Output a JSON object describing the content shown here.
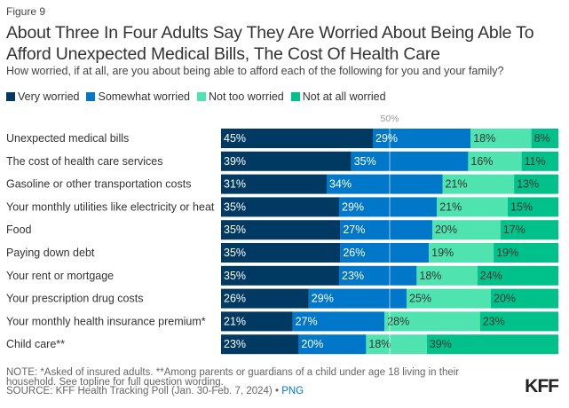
{
  "figure_label": "Figure 9",
  "chart_data": {
    "type": "bar",
    "orientation": "horizontal-stacked",
    "title": "About Three In Four Adults Say They Are Worried About Being Able To Afford Unexpected Medical Bills, The Cost Of Health Care",
    "subtitle": "How worried, if at all, are you about being able to afford each of the following for you and your family?",
    "reference_line": {
      "value": 50,
      "label": "50%"
    },
    "categories": [
      "Unexpected medical bills",
      "The cost of health care services",
      "Gasoline or other transportation costs",
      "Your monthly utilities like electricity or heat",
      "Food",
      "Paying down debt",
      "Your rent or mortgage",
      "Your prescription drug costs",
      "Your monthly health insurance premium*",
      "Child care**"
    ],
    "series": [
      {
        "name": "Very worried",
        "color": "#003a63",
        "label_color": "#ffffff",
        "values": [
          45,
          39,
          31,
          35,
          35,
          35,
          35,
          26,
          21,
          23
        ]
      },
      {
        "name": "Somewhat worried",
        "color": "#0077c8",
        "label_color": "#ffffff",
        "values": [
          29,
          35,
          34,
          29,
          27,
          26,
          23,
          29,
          27,
          20
        ]
      },
      {
        "name": "Not too worried",
        "color": "#4fe3b0",
        "label_color": "#333333",
        "values": [
          18,
          16,
          21,
          21,
          20,
          19,
          18,
          25,
          28,
          18
        ]
      },
      {
        "name": "Not at all worried",
        "color": "#00c18a",
        "label_color": "#333333",
        "values": [
          8,
          11,
          13,
          15,
          17,
          19,
          24,
          20,
          23,
          39
        ]
      }
    ],
    "legend_position": "top-left"
  },
  "note": "NOTE: *Asked of insured adults. **Among parents or guardians of a child under age 18 living in their household. See topline for full question wording.",
  "source": "SOURCE: KFF Health Tracking Poll (Jan. 30-Feb. 7, 2024) •",
  "png_link": "PNG",
  "logo": "KFF"
}
